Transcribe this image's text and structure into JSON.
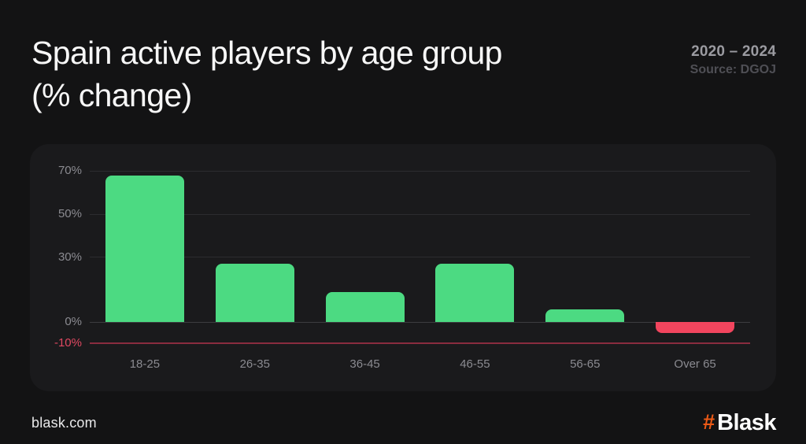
{
  "header": {
    "title_line1": "Spain active players by age group",
    "title_line2": "(% change)",
    "period": "2020 – 2024",
    "source": "Source: DGOJ"
  },
  "chart_data": {
    "type": "bar",
    "title": "Spain active players by age group (% change)",
    "categories": [
      "18-25",
      "26-35",
      "36-45",
      "46-55",
      "56-65",
      "Over 65"
    ],
    "values": [
      68,
      27,
      14,
      27,
      6,
      -5
    ],
    "unit": "%",
    "y_ticks": [
      {
        "label": "70%",
        "value": 70,
        "style": "grid"
      },
      {
        "label": "50%",
        "value": 50,
        "style": "grid"
      },
      {
        "label": "30%",
        "value": 30,
        "style": "grid"
      },
      {
        "label": "0%",
        "value": 0,
        "style": "zero"
      },
      {
        "label": "-10%",
        "value": -10,
        "style": "negative"
      }
    ],
    "ylim": [
      -13,
      79
    ],
    "grid": "horizontal",
    "legend": "none",
    "bar_colors": {
      "positive": "#4cda82",
      "negative": "#f2455e"
    }
  },
  "footer": {
    "website": "blask.com",
    "brand_hash": "#",
    "brand": "Blask"
  },
  "colors": {
    "page_bg": "#131314",
    "panel_bg": "#1a1a1c",
    "title": "#f7f7f7",
    "period": "#9b9ba1",
    "source": "#4f4f55",
    "axis_label": "#8b8b91",
    "negative_axis_label": "#df4861",
    "gridline": "#2c2c2f",
    "zero_line": "#3c3c40",
    "negative_line": "#8a2c3f",
    "brand_orange": "#ed5a16"
  }
}
